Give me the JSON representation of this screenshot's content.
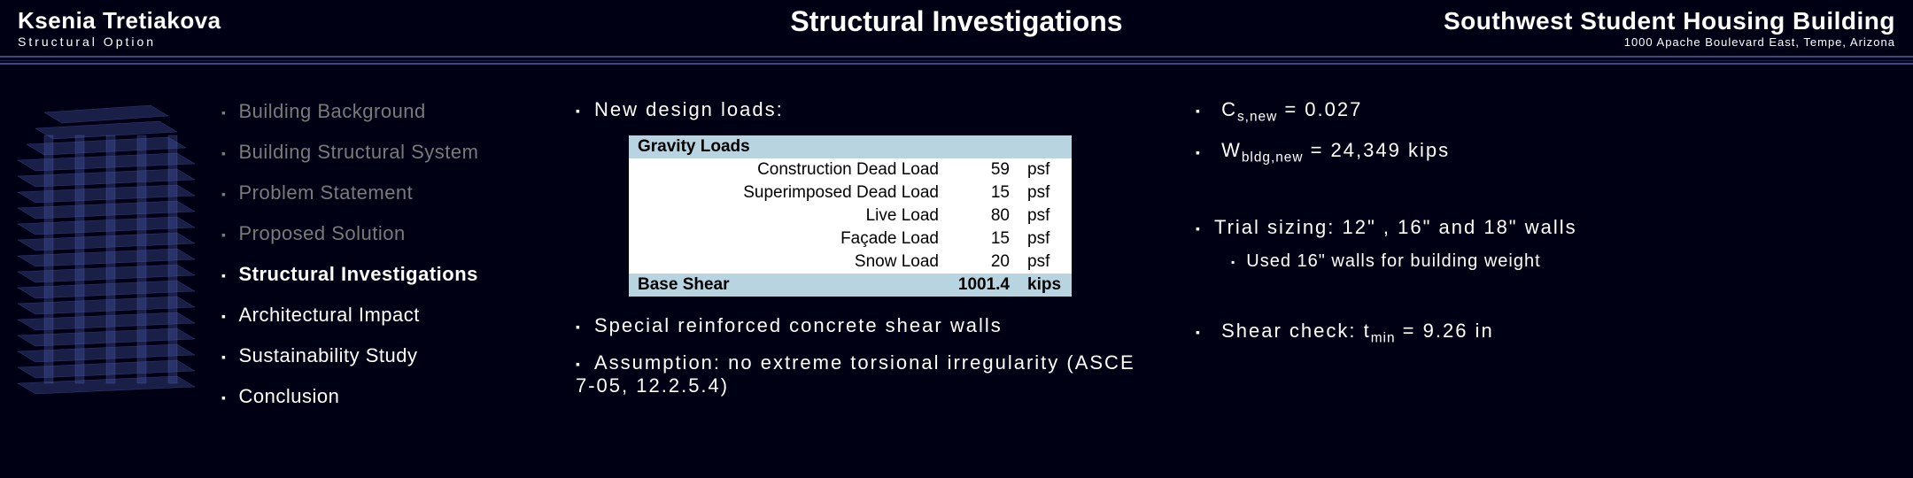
{
  "header": {
    "name": "Ksenia Tretiakova",
    "subtitle": "Structural Option",
    "title": "Structural Investigations",
    "project": "Southwest Student Housing Building",
    "address": "1000 Apache Boulevard East, Tempe, Arizona"
  },
  "nav": [
    {
      "label": "Building Background",
      "state": "dim"
    },
    {
      "label": "Building Structural System",
      "state": "dim"
    },
    {
      "label": "Problem Statement",
      "state": "dim"
    },
    {
      "label": "Proposed Solution",
      "state": "dim"
    },
    {
      "label": "Structural Investigations",
      "state": "active"
    },
    {
      "label": "Architectural Impact",
      "state": "white"
    },
    {
      "label": "Sustainability Study",
      "state": "white"
    },
    {
      "label": "Conclusion",
      "state": "white"
    }
  ],
  "col2": {
    "heading": "New design loads:",
    "table": {
      "header": "Gravity Loads",
      "rows": [
        {
          "label": "Construction Dead Load",
          "val": "59",
          "unit": "psf"
        },
        {
          "label": "Superimposed Dead Load",
          "val": "15",
          "unit": "psf"
        },
        {
          "label": "Live Load",
          "val": "80",
          "unit": "psf"
        },
        {
          "label": "Façade Load",
          "val": "15",
          "unit": "psf"
        },
        {
          "label": "Snow Load",
          "val": "20",
          "unit": "psf"
        }
      ],
      "footer_label": "Base Shear",
      "footer_val": "1001.4",
      "footer_unit": "kips"
    },
    "b2": "Special reinforced concrete shear walls",
    "b3": "Assumption: no extreme torsional irregularity (ASCE 7-05, 12.2.5.4)"
  },
  "col3": {
    "cs_prefix": "C",
    "cs_sub": "s,new",
    "cs_suffix": " = 0.027",
    "w_prefix": "W",
    "w_sub": "bldg,new",
    "w_suffix": " = 24,349 kips",
    "trial": "Trial sizing: 12\" , 16\" and 18\" walls",
    "trial_sub": "Used 16\" walls for building weight",
    "shear_prefix": "Shear check: t",
    "shear_sub": "min",
    "shear_suffix": " = 9.26 in"
  },
  "colors": {
    "bg": "#000015",
    "rule": "#3a4a7a",
    "dim": "#7a7a7a",
    "table_hdr": "#b8d4e0",
    "bldg": "#4a5aaa"
  }
}
